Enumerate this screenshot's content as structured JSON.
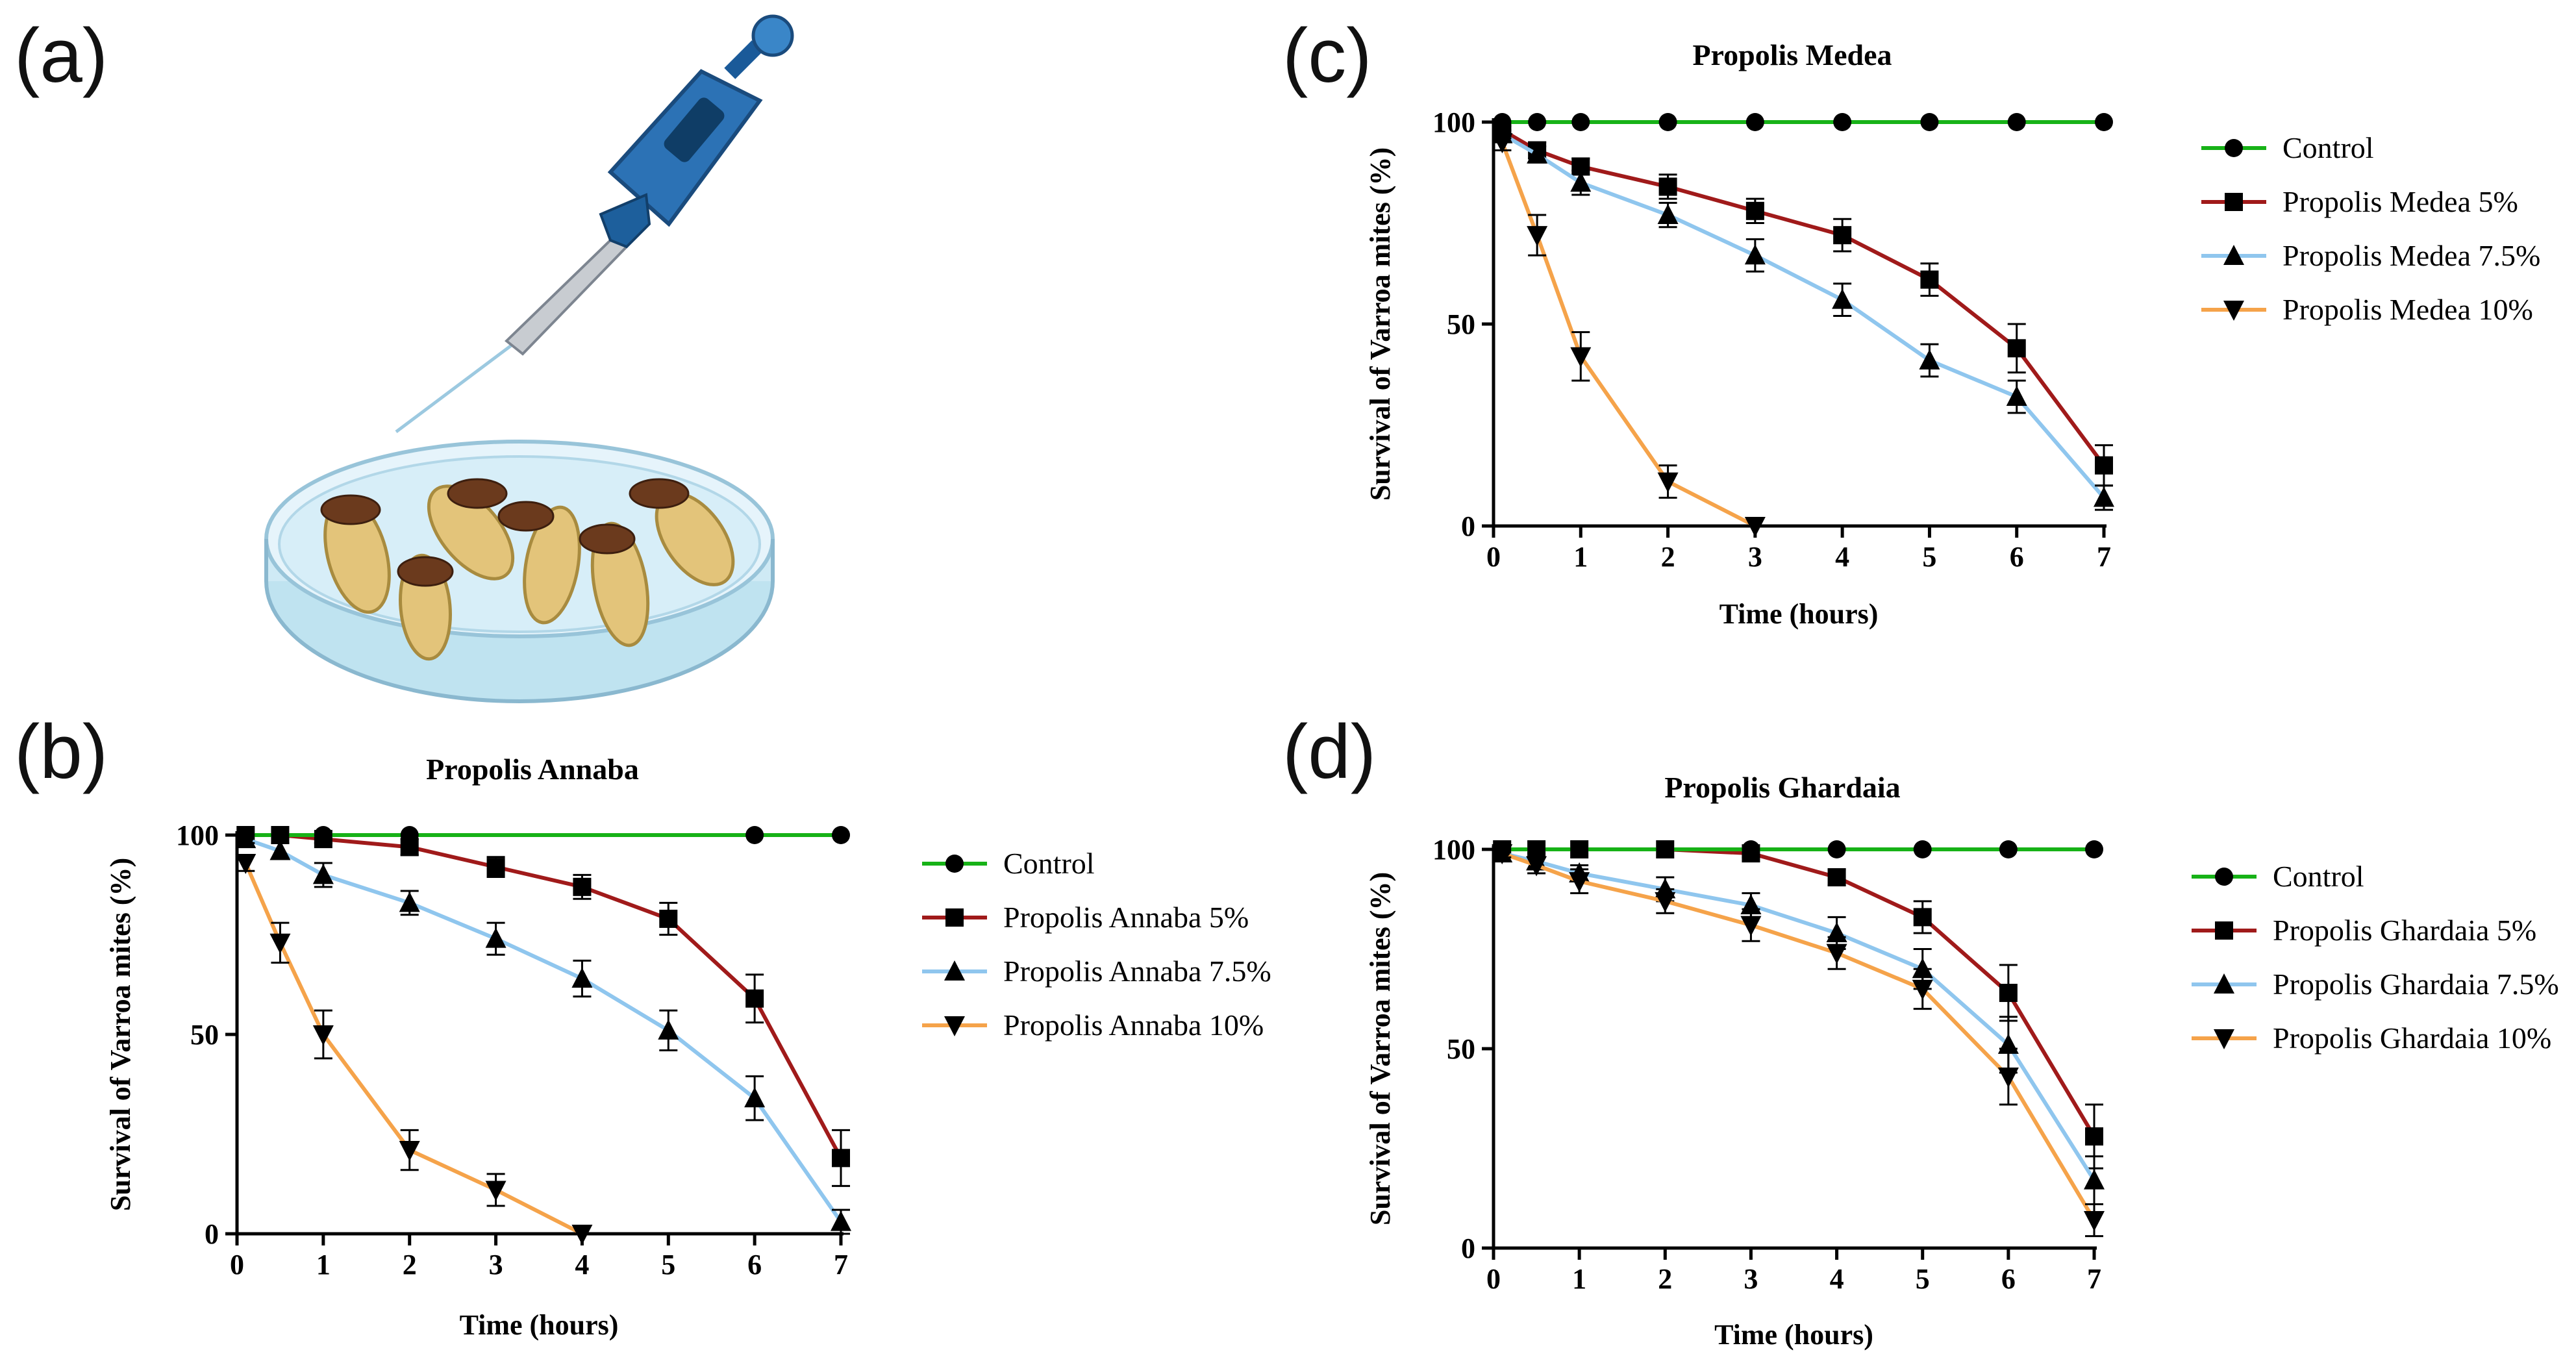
{
  "panel_labels": [
    "(a)",
    "(b)",
    "(c)",
    "(d)"
  ],
  "colors": {
    "control": "#17b217",
    "c5": "#a01a1a",
    "c75": "#8fc6ee",
    "c10": "#f5a34a",
    "axis": "#000000"
  },
  "illustration": {
    "icons": [
      "pipette-icon",
      "petri-dish-icon",
      "larva-icon"
    ]
  },
  "chart_data": [
    {
      "type": "line",
      "panel": "(b)",
      "title": "Propolis Annaba",
      "xlabel": "Time (hours)",
      "ylabel": "Survival of Varroa mites (%)",
      "xlim": [
        0,
        7
      ],
      "ylim": [
        0,
        100
      ],
      "xticks": [
        "0",
        "1",
        "2",
        "3",
        "4",
        "5",
        "6",
        "7"
      ],
      "yticks": [
        "0",
        "50",
        "100"
      ],
      "legend_position": "right",
      "series": [
        {
          "name": "Control",
          "key": "control",
          "marker": "circle",
          "x": [
            0.1,
            0.5,
            1,
            2,
            6,
            7
          ],
          "y": [
            100,
            100,
            100,
            100,
            100,
            100
          ],
          "err": [
            0,
            0,
            0,
            0,
            0,
            0
          ]
        },
        {
          "name": "Propolis Annaba 5%",
          "key": "c5",
          "marker": "square",
          "x": [
            0.1,
            0.5,
            1,
            2,
            3,
            4,
            5,
            6,
            7
          ],
          "y": [
            100,
            100,
            99,
            97,
            92,
            87,
            79,
            59,
            19
          ],
          "err": [
            0,
            0,
            1,
            2,
            2.5,
            3,
            4,
            6,
            7
          ]
        },
        {
          "name": "Propolis Annaba 7.5%",
          "key": "c75",
          "marker": "triangle",
          "x": [
            0.1,
            0.5,
            1,
            2,
            3,
            4,
            5,
            6,
            7
          ],
          "y": [
            99,
            96,
            90,
            83,
            74,
            64,
            51,
            34,
            3
          ],
          "err": [
            1,
            2,
            3,
            3,
            4,
            4.5,
            5,
            5.5,
            3
          ]
        },
        {
          "name": "Propolis Annaba 10%",
          "key": "c10",
          "marker": "triangle-down",
          "x": [
            0.1,
            0.5,
            1,
            2,
            3,
            4
          ],
          "y": [
            93,
            73,
            50,
            21,
            11,
            0
          ],
          "err": [
            2,
            5,
            6,
            5,
            4,
            0
          ]
        }
      ]
    },
    {
      "type": "line",
      "panel": "(c)",
      "title": "Propolis Medea",
      "xlabel": "Time (hours)",
      "ylabel": "Survival of Varroa mites (%)",
      "xlim": [
        0,
        7
      ],
      "ylim": [
        0,
        100
      ],
      "xticks": [
        "0",
        "1",
        "2",
        "3",
        "4",
        "5",
        "6",
        "7"
      ],
      "yticks": [
        "0",
        "50",
        "100"
      ],
      "legend_position": "right",
      "series": [
        {
          "name": "Control",
          "key": "control",
          "marker": "circle",
          "x": [
            0.1,
            0.5,
            1,
            2,
            3,
            4,
            5,
            6,
            7
          ],
          "y": [
            100,
            100,
            100,
            100,
            100,
            100,
            100,
            100,
            100
          ],
          "err": [
            0,
            0,
            0,
            0,
            0,
            0,
            0,
            0,
            0
          ]
        },
        {
          "name": "Propolis Medea 5%",
          "key": "c5",
          "marker": "square",
          "x": [
            0.1,
            0.5,
            1,
            2,
            3,
            4,
            5,
            6,
            7
          ],
          "y": [
            98,
            93,
            89,
            84,
            78,
            72,
            61,
            44,
            15
          ],
          "err": [
            1,
            2,
            2,
            3,
            3,
            4,
            4,
            6,
            5
          ]
        },
        {
          "name": "Propolis Medea 7.5%",
          "key": "c75",
          "marker": "triangle",
          "x": [
            0.1,
            0.5,
            1,
            2,
            3,
            4,
            5,
            6,
            7
          ],
          "y": [
            97,
            92,
            85,
            77,
            67,
            56,
            41,
            32,
            7
          ],
          "err": [
            1,
            2,
            3,
            3,
            4,
            4,
            4,
            4,
            3
          ]
        },
        {
          "name": "Propolis Medea 10%",
          "key": "c10",
          "marker": "triangle-down",
          "x": [
            0.1,
            0.5,
            1,
            2,
            3
          ],
          "y": [
            95,
            72,
            42,
            11,
            0
          ],
          "err": [
            2,
            5,
            6,
            4,
            0
          ]
        }
      ]
    },
    {
      "type": "line",
      "panel": "(d)",
      "title": "Propolis Ghardaia",
      "xlabel": "Time (hours)",
      "ylabel": "Survival of Varroa mites (%)",
      "xlim": [
        0,
        7
      ],
      "ylim": [
        0,
        100
      ],
      "xticks": [
        "0",
        "1",
        "2",
        "3",
        "4",
        "5",
        "6",
        "7"
      ],
      "yticks": [
        "0",
        "50",
        "100"
      ],
      "legend_position": "right",
      "series": [
        {
          "name": "Control",
          "key": "control",
          "marker": "circle",
          "x": [
            0.1,
            0.5,
            1,
            2,
            3,
            4,
            5,
            6,
            7
          ],
          "y": [
            100,
            100,
            100,
            100,
            100,
            100,
            100,
            100,
            100
          ],
          "err": [
            0,
            0,
            0,
            0,
            0,
            0,
            0,
            0,
            0
          ]
        },
        {
          "name": "Propolis Ghardaia 5%",
          "key": "c5",
          "marker": "square",
          "x": [
            0.1,
            0.5,
            1,
            2,
            3,
            4,
            5,
            6,
            7
          ],
          "y": [
            100,
            100,
            100,
            100,
            99,
            93,
            83,
            64,
            28
          ],
          "err": [
            0,
            0,
            0,
            0,
            1,
            2,
            4,
            7,
            8
          ]
        },
        {
          "name": "Propolis Ghardaia 7.5%",
          "key": "c75",
          "marker": "triangle",
          "x": [
            0.1,
            0.5,
            1,
            2,
            3,
            4,
            5,
            6,
            7
          ],
          "y": [
            99,
            97,
            94,
            90,
            86,
            79,
            70,
            51,
            17
          ],
          "err": [
            1,
            2,
            2,
            3,
            3,
            4,
            5,
            7,
            6
          ]
        },
        {
          "name": "Propolis Ghardaia 10%",
          "key": "c10",
          "marker": "triangle-down",
          "x": [
            0.1,
            0.5,
            1,
            2,
            3,
            4,
            5,
            6,
            7
          ],
          "y": [
            99,
            96,
            92,
            87,
            81,
            74,
            65,
            43,
            7
          ],
          "err": [
            1,
            2,
            3,
            3,
            4,
            4,
            5,
            7,
            4
          ]
        }
      ]
    }
  ]
}
